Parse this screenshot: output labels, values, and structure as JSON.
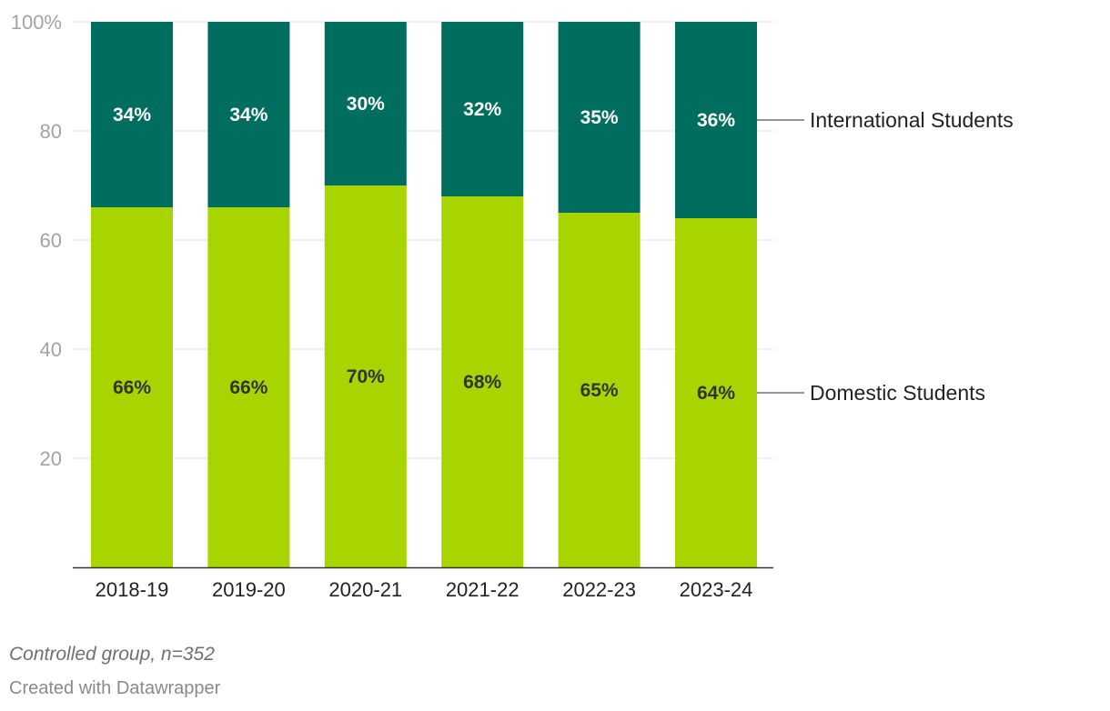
{
  "chart_data": {
    "type": "bar",
    "stacked": true,
    "categories": [
      "2018-19",
      "2019-20",
      "2020-21",
      "2021-22",
      "2022-23",
      "2023-24"
    ],
    "series": [
      {
        "name": "Domestic Students",
        "values": [
          66,
          66,
          70,
          68,
          65,
          64
        ],
        "labels": [
          "66%",
          "66%",
          "70%",
          "68%",
          "65%",
          "64%"
        ],
        "color": "#a8d400",
        "label_color": "#333333"
      },
      {
        "name": "International Students",
        "values": [
          34,
          34,
          30,
          32,
          35,
          36
        ],
        "labels": [
          "34%",
          "34%",
          "30%",
          "32%",
          "35%",
          "36%"
        ],
        "color": "#006e5f",
        "label_color": "#ffffff"
      }
    ],
    "yticks": [
      "20",
      "40",
      "60",
      "80",
      "100%"
    ],
    "ytick_values": [
      20,
      40,
      60,
      80,
      100
    ],
    "ylim": [
      0,
      100
    ],
    "grid": true,
    "legend": "direct labels at right"
  },
  "notes": "Controlled group, n=352",
  "credit": "Created with Datawrapper"
}
